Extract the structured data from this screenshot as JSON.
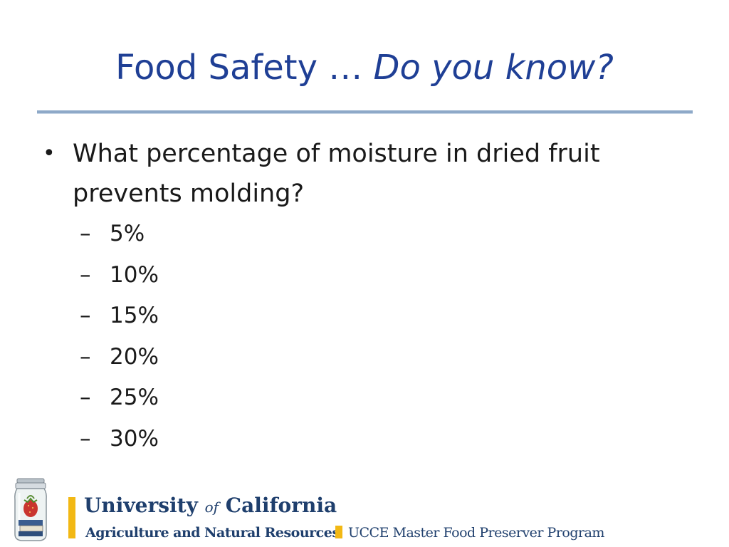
{
  "slide": {
    "title_prefix": "Food Safety … ",
    "title_italic": "Do you know?"
  },
  "question": {
    "bullet": "•",
    "text_line1": "What percentage of moisture in dried fruit",
    "text_line2": "prevents molding?"
  },
  "options": [
    {
      "dash": "–",
      "label": "5%"
    },
    {
      "dash": "–",
      "label": "10%"
    },
    {
      "dash": "–",
      "label": "15%"
    },
    {
      "dash": "–",
      "label": "20%"
    },
    {
      "dash": "–",
      "label": "25%"
    },
    {
      "dash": "–",
      "label": "30%"
    }
  ],
  "footer": {
    "logo_icon": "preserve-jar-icon",
    "university_left": "University ",
    "university_of": "of",
    "university_right": " California",
    "division": "Agriculture and Natural Resources",
    "program": "UCCE Master Food Preserver Program"
  },
  "colors": {
    "title": "#1f3f95",
    "rule": "#8ea9c8",
    "footer_text": "#1f3f6d",
    "gold_accent": "#f2b814"
  }
}
